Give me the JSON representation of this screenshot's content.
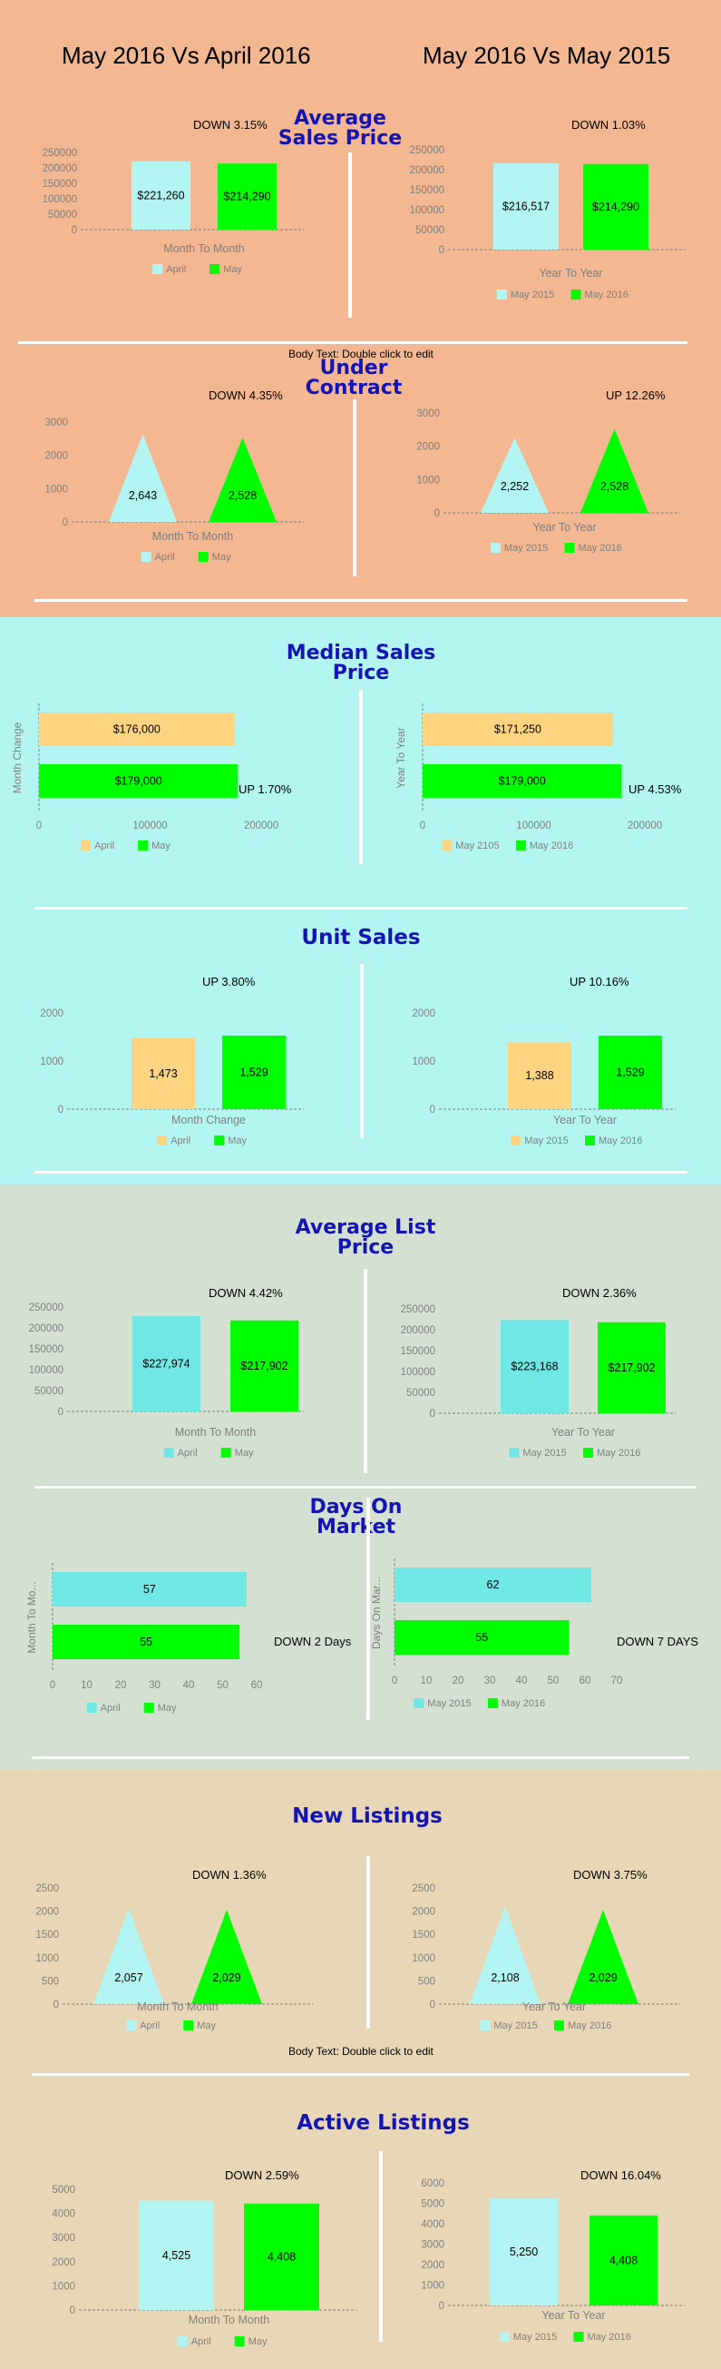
{
  "colors": {
    "peach": "#f3b891",
    "cyan_bg": "#b2f5f1",
    "sage": "#d3e0d2",
    "tan": "#e8d7b6",
    "light_cyan": "#b3f5f2",
    "green": "#00ff00",
    "yellow": "#fed480",
    "teal": "#6fe8e5",
    "title": "#1414b4",
    "axis": "#7f7f7f"
  },
  "header": {
    "left": "May 2016 Vs April 2016",
    "right": "May 2016 Vs May 2015"
  },
  "sections": {
    "avg_sales": "Average Sales Price",
    "under_contract": "Under Contract",
    "median_sales": "Median Sales Price",
    "unit_sales": "Unit Sales",
    "avg_list": "Average List Price",
    "days_on_market": "Days On Market",
    "new_listings": "New Listings",
    "active_listings": "Active Listings"
  },
  "notes": {
    "placeholder_1": "Body Text: Double click to edit",
    "placeholder_2": "Body Text: Double click to edit"
  },
  "chart_data": [
    {
      "id": "c1",
      "type": "bar",
      "change": "DOWN 3.15%",
      "categories": [
        "April",
        "May"
      ],
      "values": [
        221260,
        214290
      ],
      "value_labels": [
        "$221,260",
        "$214,290"
      ],
      "legend": [
        "April",
        "May"
      ],
      "xlabel": "Month To Month",
      "yticks": [
        "0",
        "50000",
        "100000",
        "150000",
        "200000",
        "250000"
      ],
      "ylim": [
        0,
        250000
      ],
      "colors": [
        "#b3f5f2",
        "#00ff00"
      ]
    },
    {
      "id": "c2",
      "type": "bar",
      "change": "DOWN 1.03%",
      "categories": [
        "May 2015",
        "May 2016"
      ],
      "values": [
        216517,
        214290
      ],
      "value_labels": [
        "$216,517",
        "$214,290"
      ],
      "legend": [
        "May 2015",
        "May 2016"
      ],
      "xlabel": "Year To Year",
      "yticks": [
        "0",
        "50000",
        "100000",
        "150000",
        "200000",
        "250000"
      ],
      "ylim": [
        0,
        250000
      ],
      "colors": [
        "#b3f5f2",
        "#00ff00"
      ]
    },
    {
      "id": "c3",
      "type": "triangle",
      "change": "DOWN 4.35%",
      "categories": [
        "April",
        "May"
      ],
      "values": [
        2643,
        2528
      ],
      "value_labels": [
        "2,643",
        "2,528"
      ],
      "legend": [
        "April",
        "May"
      ],
      "xlabel": "Month To Month",
      "yticks": [
        "0",
        "1000",
        "2000",
        "3000"
      ],
      "ylim": [
        0,
        3000
      ],
      "colors": [
        "#b3f5f2",
        "#00ff00"
      ]
    },
    {
      "id": "c4",
      "type": "triangle",
      "change": "UP 12.26%",
      "categories": [
        "May 2015",
        "May 2016"
      ],
      "values": [
        2252,
        2528
      ],
      "value_labels": [
        "2,252",
        "2,528"
      ],
      "legend": [
        "May 2015",
        "May 2016"
      ],
      "xlabel": "Year To Year",
      "yticks": [
        "0",
        "1000",
        "2000",
        "3000"
      ],
      "ylim": [
        0,
        3000
      ],
      "colors": [
        "#b3f5f2",
        "#00ff00"
      ]
    },
    {
      "id": "c5",
      "type": "hbar",
      "change": "UP 1.70%",
      "categories": [
        "April",
        "May"
      ],
      "values": [
        176000,
        179000
      ],
      "value_labels": [
        "$176,000",
        "$179,000"
      ],
      "legend": [
        "April",
        "May"
      ],
      "ylabel": "Month Change",
      "xticks": [
        "0",
        "100000",
        "200000"
      ],
      "xlim": [
        0,
        200000
      ],
      "colors": [
        "#fed480",
        "#00ff00"
      ]
    },
    {
      "id": "c6",
      "type": "hbar",
      "change": "UP 4.53%",
      "categories": [
        "May 2105",
        "May 2016"
      ],
      "values": [
        171250,
        179000
      ],
      "value_labels": [
        "$171,250",
        "$179,000"
      ],
      "legend": [
        "May 2105",
        "May 2016"
      ],
      "ylabel": "Year To Year",
      "xticks": [
        "0",
        "100000",
        "200000"
      ],
      "xlim": [
        0,
        200000
      ],
      "colors": [
        "#fed480",
        "#00ff00"
      ]
    },
    {
      "id": "c7",
      "type": "bar",
      "change": "UP 3.80%",
      "categories": [
        "April",
        "May"
      ],
      "values": [
        1473,
        1529
      ],
      "value_labels": [
        "1,473",
        "1,529"
      ],
      "legend": [
        "April",
        "May"
      ],
      "xlabel": "Month Change",
      "yticks": [
        "0",
        "1000",
        "2000"
      ],
      "ylim": [
        0,
        2000
      ],
      "colors": [
        "#fed480",
        "#00ff00"
      ]
    },
    {
      "id": "c8",
      "type": "bar",
      "change": "UP 10.16%",
      "categories": [
        "May 2015",
        "May 2016"
      ],
      "values": [
        1388,
        1529
      ],
      "value_labels": [
        "1,388",
        "1,529"
      ],
      "legend": [
        "May 2015",
        "May 2016"
      ],
      "xlabel": "Year To Year",
      "yticks": [
        "0",
        "1000",
        "2000"
      ],
      "ylim": [
        0,
        2000
      ],
      "colors": [
        "#fed480",
        "#00ff00"
      ]
    },
    {
      "id": "c9",
      "type": "bar",
      "change": "DOWN 4.42%",
      "categories": [
        "April",
        "May"
      ],
      "values": [
        227974,
        217902
      ],
      "value_labels": [
        "$227,974",
        "$217,902"
      ],
      "legend": [
        "April",
        "May"
      ],
      "xlabel": "Month To Month",
      "yticks": [
        "0",
        "50000",
        "100000",
        "150000",
        "200000",
        "250000"
      ],
      "ylim": [
        0,
        250000
      ],
      "colors": [
        "#6fe8e5",
        "#00ff00"
      ]
    },
    {
      "id": "c10",
      "type": "bar",
      "change": "DOWN 2.36%",
      "categories": [
        "May 2015",
        "May 2016"
      ],
      "values": [
        223168,
        217902
      ],
      "value_labels": [
        "$223,168",
        "$217,902"
      ],
      "legend": [
        "May 2015",
        "May 2016"
      ],
      "xlabel": "Year To Year",
      "yticks": [
        "0",
        "50000",
        "100000",
        "150000",
        "200000",
        "250000"
      ],
      "ylim": [
        0,
        250000
      ],
      "colors": [
        "#6fe8e5",
        "#00ff00"
      ]
    },
    {
      "id": "c11",
      "type": "hbar",
      "change": "DOWN 2 Days",
      "categories": [
        "April",
        "May"
      ],
      "values": [
        57,
        55
      ],
      "value_labels": [
        "57",
        "55"
      ],
      "legend": [
        "April",
        "May"
      ],
      "ylabel": "Month To Mo...",
      "xticks": [
        "0",
        "10",
        "20",
        "30",
        "40",
        "50",
        "60"
      ],
      "xlim": [
        0,
        60
      ],
      "colors": [
        "#6fe8e5",
        "#00ff00"
      ]
    },
    {
      "id": "c12",
      "type": "hbar",
      "change": "DOWN 7 DAYS",
      "categories": [
        "May 2015",
        "May 2016"
      ],
      "values": [
        62,
        55
      ],
      "value_labels": [
        "62",
        "55"
      ],
      "legend": [
        "May 2015",
        "May 2016"
      ],
      "ylabel": "Days On Mar...",
      "xticks": [
        "0",
        "10",
        "20",
        "30",
        "40",
        "50",
        "60",
        "70"
      ],
      "xlim": [
        0,
        70
      ],
      "colors": [
        "#6fe8e5",
        "#00ff00"
      ]
    },
    {
      "id": "c13",
      "type": "triangle",
      "change": "DOWN 1.36%",
      "categories": [
        "April",
        "May"
      ],
      "values": [
        2057,
        2029
      ],
      "value_labels": [
        "2,057",
        "2,029"
      ],
      "legend": [
        "April",
        "May"
      ],
      "xlabel": "Month To Month",
      "yticks": [
        "0",
        "500",
        "1000",
        "1500",
        "2000",
        "2500"
      ],
      "ylim": [
        0,
        2500
      ],
      "colors": [
        "#b3f5f2",
        "#00ff00"
      ]
    },
    {
      "id": "c14",
      "type": "triangle",
      "change": "DOWN 3.75%",
      "categories": [
        "May 2015",
        "May 2016"
      ],
      "values": [
        2108,
        2029
      ],
      "value_labels": [
        "2,108",
        "2,029"
      ],
      "legend": [
        "May 2015",
        "May 2016"
      ],
      "xlabel": "Year To Year",
      "yticks": [
        "0",
        "500",
        "1000",
        "1500",
        "2000",
        "2500"
      ],
      "ylim": [
        0,
        2500
      ],
      "colors": [
        "#b3f5f2",
        "#00ff00"
      ]
    },
    {
      "id": "c15",
      "type": "bar",
      "change": "DOWN 2.59%",
      "categories": [
        "April",
        "May"
      ],
      "values": [
        4525,
        4408
      ],
      "value_labels": [
        "4,525",
        "4,408"
      ],
      "legend": [
        "April",
        "May"
      ],
      "xlabel": "Month To Month",
      "yticks": [
        "0",
        "1000",
        "2000",
        "3000",
        "4000",
        "5000"
      ],
      "ylim": [
        0,
        5000
      ],
      "colors": [
        "#b3f5f2",
        "#00ff00"
      ]
    },
    {
      "id": "c16",
      "type": "bar",
      "change": "DOWN 16.04%",
      "categories": [
        "May 2015",
        "May 2016"
      ],
      "values": [
        5250,
        4408
      ],
      "value_labels": [
        "5,250",
        "4,408"
      ],
      "legend": [
        "May 2015",
        "May 2016"
      ],
      "xlabel": "Year To Year",
      "yticks": [
        "0",
        "1000",
        "2000",
        "3000",
        "4000",
        "5000",
        "6000"
      ],
      "ylim": [
        0,
        6000
      ],
      "colors": [
        "#b3f5f2",
        "#00ff00"
      ]
    }
  ]
}
